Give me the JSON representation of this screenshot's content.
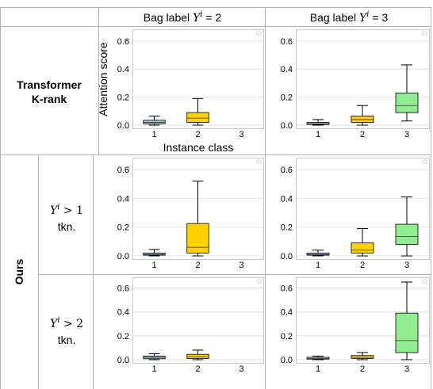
{
  "header": {
    "col1": {
      "prefix": "Bag label ",
      "var": "Y",
      "sup": "i",
      "suffix": " = 2"
    },
    "col2": {
      "prefix": "Bag label ",
      "var": "Y",
      "sup": "i",
      "suffix": " = 3"
    }
  },
  "rows": {
    "transformer": {
      "line1": "Transformer",
      "line2": "K-rank"
    },
    "ours": {
      "label": "Ours",
      "sub1": {
        "var": "Y",
        "sup": "i",
        "rel": " > 1",
        "tkn": "tkn."
      },
      "sub2": {
        "var": "Y",
        "sup": "i",
        "rel": " > 2",
        "tkn": "tkn."
      }
    }
  },
  "axes": {
    "ylabel": "Attention score",
    "xlabel": "Instance class"
  },
  "colors": {
    "class1": "#a8c5d4",
    "class2": "#ffd200",
    "class3": "#90ee90",
    "grid": "#e3e3e3",
    "border": "#c8c8c8"
  },
  "chart_data": [
    {
      "type": "box",
      "panel": "transformer-k-rank / bag label 2",
      "categories": [
        "1",
        "2",
        "3"
      ],
      "ylim": [
        0,
        0.65
      ],
      "yticks": [
        "0.0",
        "0.2",
        "0.4",
        "0.6"
      ],
      "boxes": [
        {
          "class": "1",
          "whislo": 0.0,
          "q1": 0.01,
          "med": 0.02,
          "q3": 0.035,
          "whishi": 0.065
        },
        {
          "class": "2",
          "whislo": 0.0,
          "q1": 0.02,
          "med": 0.05,
          "q3": 0.09,
          "whishi": 0.19
        }
      ]
    },
    {
      "type": "box",
      "panel": "transformer-k-rank / bag label 3",
      "categories": [
        "1",
        "2",
        "3"
      ],
      "ylim": [
        0,
        0.65
      ],
      "yticks": [
        "0.0",
        "0.2",
        "0.4",
        "0.6"
      ],
      "boxes": [
        {
          "class": "1",
          "whislo": 0.0,
          "q1": 0.005,
          "med": 0.01,
          "q3": 0.02,
          "whishi": 0.04
        },
        {
          "class": "2",
          "whislo": 0.0,
          "q1": 0.02,
          "med": 0.04,
          "q3": 0.065,
          "whishi": 0.14
        },
        {
          "class": "3",
          "whislo": 0.03,
          "q1": 0.09,
          "med": 0.14,
          "q3": 0.23,
          "whishi": 0.43
        }
      ]
    },
    {
      "type": "box",
      "panel": "ours Y>1 tkn. / bag label 2",
      "categories": [
        "1",
        "2",
        "3"
      ],
      "ylim": [
        0,
        0.65
      ],
      "yticks": [
        "0.0",
        "0.2",
        "0.4",
        "0.6"
      ],
      "boxes": [
        {
          "class": "1",
          "whislo": 0.0,
          "q1": 0.005,
          "med": 0.01,
          "q3": 0.02,
          "whishi": 0.045
        },
        {
          "class": "2",
          "whislo": 0.0,
          "q1": 0.02,
          "med": 0.06,
          "q3": 0.225,
          "whishi": 0.52
        }
      ]
    },
    {
      "type": "box",
      "panel": "ours Y>1 tkn. / bag label 3",
      "categories": [
        "1",
        "2",
        "3"
      ],
      "ylim": [
        0,
        0.65
      ],
      "yticks": [
        "0.0",
        "0.2",
        "0.4",
        "0.6"
      ],
      "boxes": [
        {
          "class": "1",
          "whislo": 0.0,
          "q1": 0.005,
          "med": 0.01,
          "q3": 0.02,
          "whishi": 0.04
        },
        {
          "class": "2",
          "whislo": 0.0,
          "q1": 0.02,
          "med": 0.04,
          "q3": 0.09,
          "whishi": 0.19
        },
        {
          "class": "3",
          "whislo": 0.0,
          "q1": 0.08,
          "med": 0.135,
          "q3": 0.22,
          "whishi": 0.41
        }
      ]
    },
    {
      "type": "box",
      "panel": "ours Y>2 tkn. / bag label 2",
      "categories": [
        "1",
        "2",
        "3"
      ],
      "ylim": [
        0,
        0.65
      ],
      "yticks": [
        "0.0",
        "0.2",
        "0.4",
        "0.6"
      ],
      "boxes": [
        {
          "class": "1",
          "whislo": 0.0,
          "q1": 0.008,
          "med": 0.02,
          "q3": 0.03,
          "whishi": 0.05
        },
        {
          "class": "2",
          "whislo": 0.0,
          "q1": 0.01,
          "med": 0.025,
          "q3": 0.045,
          "whishi": 0.08
        }
      ]
    },
    {
      "type": "box",
      "panel": "ours Y>2 tkn. / bag label 3",
      "categories": [
        "1",
        "2",
        "3"
      ],
      "ylim": [
        0,
        0.65
      ],
      "yticks": [
        "0.0",
        "0.2",
        "0.4",
        "0.6"
      ],
      "boxes": [
        {
          "class": "1",
          "whislo": 0.0,
          "q1": 0.005,
          "med": 0.01,
          "q3": 0.02,
          "whishi": 0.03
        },
        {
          "class": "2",
          "whislo": 0.0,
          "q1": 0.01,
          "med": 0.02,
          "q3": 0.035,
          "whishi": 0.06
        },
        {
          "class": "3",
          "whislo": 0.0,
          "q1": 0.06,
          "med": 0.16,
          "q3": 0.39,
          "whishi": 0.65
        }
      ]
    }
  ]
}
